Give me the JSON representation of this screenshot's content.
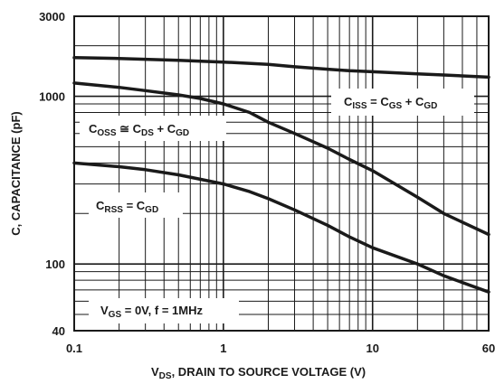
{
  "chart_data": {
    "type": "line",
    "xscale": "log",
    "yscale": "log",
    "xlim": [
      0.1,
      60
    ],
    "ylim": [
      40,
      3000
    ],
    "grid": true,
    "xlabel": {
      "v": "V",
      "sub": "DS",
      "rest": ", DRAIN TO SOURCE VOLTAGE (V)"
    },
    "ylabel": "C, CAPACITANCE (pF)",
    "xticks": [
      {
        "value": 0.1,
        "label": "0.1"
      },
      {
        "value": 1,
        "label": "1"
      },
      {
        "value": 10,
        "label": "10"
      },
      {
        "value": 60,
        "label": "60"
      }
    ],
    "yticks": [
      {
        "value": 3000,
        "label": "3000"
      },
      {
        "value": 1000,
        "label": "1000"
      },
      {
        "value": 100,
        "label": "100"
      },
      {
        "value": 40,
        "label": "40"
      }
    ],
    "series": [
      {
        "name": "C_ISS",
        "points": [
          [
            0.1,
            1700
          ],
          [
            0.2,
            1680
          ],
          [
            0.5,
            1640
          ],
          [
            1,
            1600
          ],
          [
            2,
            1550
          ],
          [
            3,
            1500
          ],
          [
            5,
            1450
          ],
          [
            7,
            1420
          ],
          [
            10,
            1400
          ],
          [
            20,
            1360
          ],
          [
            30,
            1340
          ],
          [
            60,
            1300
          ]
        ]
      },
      {
        "name": "C_OSS",
        "points": [
          [
            0.1,
            1200
          ],
          [
            0.2,
            1130
          ],
          [
            0.3,
            1080
          ],
          [
            0.5,
            1020
          ],
          [
            0.7,
            970
          ],
          [
            1,
            900
          ],
          [
            1.5,
            800
          ],
          [
            2,
            700
          ],
          [
            3,
            600
          ],
          [
            5,
            490
          ],
          [
            7,
            420
          ],
          [
            10,
            360
          ],
          [
            20,
            250
          ],
          [
            30,
            200
          ],
          [
            60,
            150
          ]
        ]
      },
      {
        "name": "C_RSS",
        "points": [
          [
            0.1,
            400
          ],
          [
            0.2,
            380
          ],
          [
            0.3,
            365
          ],
          [
            0.5,
            340
          ],
          [
            0.7,
            320
          ],
          [
            1,
            300
          ],
          [
            1.5,
            270
          ],
          [
            2,
            245
          ],
          [
            3,
            210
          ],
          [
            5,
            170
          ],
          [
            7,
            145
          ],
          [
            10,
            125
          ],
          [
            20,
            100
          ],
          [
            30,
            85
          ],
          [
            60,
            68
          ]
        ]
      }
    ],
    "annotations": [
      {
        "id": "ciss",
        "parts": [
          [
            "C",
            ""
          ],
          [
            "ISS",
            "sub"
          ],
          [
            " = C",
            ""
          ],
          [
            "GS",
            "sub"
          ],
          [
            " + C",
            ""
          ],
          [
            "GD",
            "sub"
          ]
        ]
      },
      {
        "id": "coss",
        "parts": [
          [
            "C",
            ""
          ],
          [
            "OSS",
            "sub"
          ],
          [
            " ≅ C",
            ""
          ],
          [
            "DS",
            "sub"
          ],
          [
            " + C",
            ""
          ],
          [
            "GD",
            "sub"
          ]
        ]
      },
      {
        "id": "crss",
        "parts": [
          [
            "C",
            ""
          ],
          [
            "RSS",
            "sub"
          ],
          [
            " = C",
            ""
          ],
          [
            "GD",
            "sub"
          ]
        ]
      },
      {
        "id": "conditions",
        "parts": [
          [
            "V",
            ""
          ],
          [
            "GS",
            "sub"
          ],
          [
            " = 0V, f = 1MHz",
            ""
          ]
        ]
      }
    ]
  }
}
